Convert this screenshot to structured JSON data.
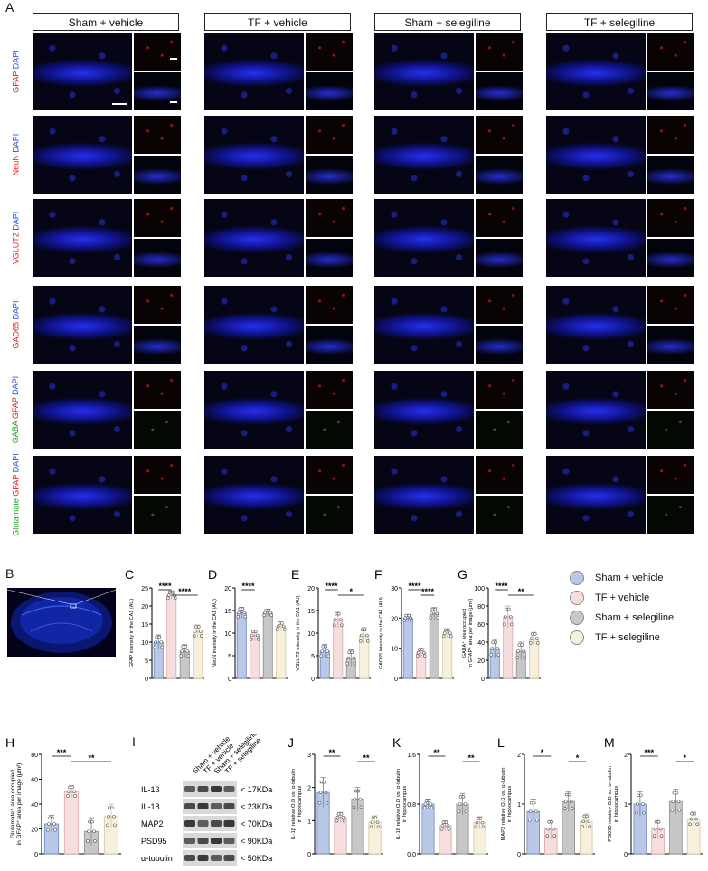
{
  "panel_labels": {
    "A": "A",
    "B": "B",
    "C": "C",
    "D": "D",
    "E": "E",
    "F": "F",
    "G": "G",
    "H": "H",
    "I": "I",
    "J": "J",
    "K": "K",
    "L": "L",
    "M": "M"
  },
  "column_headers": [
    "Sham + vehicle",
    "TF + vehicle",
    "Sham + selegiline",
    "TF + selegiline"
  ],
  "row_labels": [
    {
      "marker": "GFAP",
      "marker_color": "#e01818",
      "stain": "DAPI",
      "stain_color": "#2b4fd6"
    },
    {
      "marker": "NeuN",
      "marker_color": "#e01818",
      "stain": "DAPI",
      "stain_color": "#2b4fd6"
    },
    {
      "marker": "VGLUT2",
      "marker_color": "#e01818",
      "stain": "DAPI",
      "stain_color": "#2b4fd6"
    },
    {
      "marker": "GAD65",
      "marker_color": "#e01818",
      "stain": "DAPI",
      "stain_color": "#2b4fd6"
    },
    {
      "marker": "GABA",
      "marker_color": "#19a019",
      "marker2": "GFAP",
      "marker2_color": "#e01818",
      "stain": "DAPI",
      "stain_color": "#2b4fd6"
    },
    {
      "marker": "Glutamate",
      "marker_color": "#19a019",
      "marker2": "GFAP",
      "marker2_color": "#e01818",
      "stain": "DAPI",
      "stain_color": "#2b4fd6"
    }
  ],
  "legend": [
    {
      "name": "Sham + vehicle",
      "color": "#b8c8e6"
    },
    {
      "name": "TF + vehicle",
      "color": "#f6dede"
    },
    {
      "name": "Sham + selegiline",
      "color": "#c7c7c7"
    },
    {
      "name": "TF + selegiline",
      "color": "#f7f0dc"
    }
  ],
  "western_blot": {
    "lanes": [
      "Sham + vehicle",
      "TF + vehicle",
      "Sham + selegiline",
      "TF + selegiline"
    ],
    "bands": [
      {
        "name": "IL-1β",
        "size": "17KDa"
      },
      {
        "name": "IL-18",
        "size": "23KDa"
      },
      {
        "name": "MAP2",
        "size": "70KDa"
      },
      {
        "name": "PSD95",
        "size": "90KDa"
      },
      {
        "name": "α-tubulin",
        "size": "50KDa"
      }
    ]
  },
  "chart_data": [
    {
      "panel": "C",
      "type": "bar",
      "categories": [
        "Sham + vehicle",
        "TF + vehicle",
        "Sham + selegiline",
        "TF + selegiline"
      ],
      "values": [
        10,
        23,
        7.5,
        13
      ],
      "errors": [
        2,
        1.2,
        1.8,
        1.8
      ],
      "ylabel": "GFAP intensity in the CA1 (AU)",
      "ylim": [
        0,
        25
      ],
      "yticks": [
        0,
        5,
        10,
        15,
        20,
        25
      ],
      "sig": [
        {
          "from": 0,
          "to": 1,
          "label": "****"
        },
        {
          "from": 1,
          "to": 3,
          "label": "****"
        }
      ]
    },
    {
      "panel": "D",
      "type": "bar",
      "categories": [
        "Sham + vehicle",
        "TF + vehicle",
        "Sham + selegiline",
        "TF + selegiline"
      ],
      "values": [
        14.5,
        9.5,
        14.5,
        11.5
      ],
      "errors": [
        1.2,
        1.2,
        0.8,
        1.0
      ],
      "ylabel": "NeuN intensity in the CA1 (AU)",
      "ylim": [
        0,
        20
      ],
      "yticks": [
        0,
        5,
        10,
        15,
        20
      ],
      "sig": [
        {
          "from": 0,
          "to": 1,
          "label": "****"
        }
      ]
    },
    {
      "panel": "E",
      "type": "bar",
      "categories": [
        "Sham + vehicle",
        "TF + vehicle",
        "Sham + selegiline",
        "TF + selegiline"
      ],
      "values": [
        6,
        13,
        4.5,
        9.5
      ],
      "errors": [
        1.5,
        1.8,
        1.8,
        1.8
      ],
      "ylabel": "VGLUT2 intensity in the CA1 (AU)",
      "ylim": [
        0,
        20
      ],
      "yticks": [
        0,
        5,
        10,
        15,
        20
      ],
      "sig": [
        {
          "from": 0,
          "to": 1,
          "label": "****"
        },
        {
          "from": 1,
          "to": 3,
          "label": "*"
        }
      ]
    },
    {
      "panel": "F",
      "type": "bar",
      "categories": [
        "Sham + vehicle",
        "TF + vehicle",
        "Sham + selegiline",
        "TF + selegiline"
      ],
      "values": [
        20,
        8.5,
        21.5,
        15
      ],
      "errors": [
        1.2,
        1.5,
        2.0,
        1.5
      ],
      "ylabel": "GAD65 intensity in the CA1 (AU)",
      "ylim": [
        0,
        30
      ],
      "yticks": [
        0,
        10,
        20,
        30
      ],
      "sig": [
        {
          "from": 0,
          "to": 1,
          "label": "****"
        },
        {
          "from": 1,
          "to": 2,
          "label": "****"
        }
      ]
    },
    {
      "panel": "G",
      "type": "bar",
      "categories": [
        "Sham + vehicle",
        "TF + vehicle",
        "Sham + selegiline",
        "TF + selegiline"
      ],
      "values": [
        33,
        68,
        30,
        44
      ],
      "errors": [
        10,
        12,
        10,
        7
      ],
      "ylabel": "GABA⁺ area occupied in GFAP⁺ area per image (μm²)",
      "ylim": [
        0,
        100
      ],
      "yticks": [
        0,
        20,
        40,
        60,
        80,
        100
      ],
      "sig": [
        {
          "from": 0,
          "to": 1,
          "label": "****"
        },
        {
          "from": 1,
          "to": 3,
          "label": "**"
        }
      ]
    },
    {
      "panel": "H",
      "type": "bar",
      "categories": [
        "Sham + vehicle",
        "TF + vehicle",
        "Sham + selegiline",
        "TF + selegiline"
      ],
      "values": [
        24,
        50,
        18,
        30
      ],
      "errors": [
        7,
        5,
        11,
        10
      ],
      "ylabel": "Glutamate⁺ area occupied in GFAP⁺ area per image (μm²)",
      "ylim": [
        0,
        80
      ],
      "yticks": [
        0,
        20,
        40,
        60,
        80
      ],
      "sig": [
        {
          "from": 0,
          "to": 1,
          "label": "***"
        },
        {
          "from": 1,
          "to": 3,
          "label": "**"
        }
      ]
    },
    {
      "panel": "J",
      "type": "bar",
      "categories": [
        "Sham + vehicle",
        "TF + vehicle",
        "Sham + selegiline",
        "TF + selegiline"
      ],
      "values": [
        1.85,
        1.1,
        1.65,
        0.95
      ],
      "errors": [
        0.45,
        0.15,
        0.35,
        0.2
      ],
      "ylabel": "IL-1β relative O.D vs. α-tubulin in hippocampus",
      "ylim": [
        0,
        3
      ],
      "yticks": [
        0,
        1,
        2,
        3
      ],
      "sig": [
        {
          "from": 0,
          "to": 1,
          "label": "**"
        },
        {
          "from": 2,
          "to": 3,
          "label": "**"
        }
      ]
    },
    {
      "panel": "K",
      "type": "bar",
      "categories": [
        "Sham + vehicle",
        "TF + vehicle",
        "Sham + selegiline",
        "TF + selegiline"
      ],
      "values": [
        0.8,
        0.45,
        0.8,
        0.5
      ],
      "errors": [
        0.08,
        0.08,
        0.17,
        0.1
      ],
      "ylabel": "IL-18 relative O.D vs. α-tubulin in hippocampus",
      "ylim": [
        0,
        1.6
      ],
      "yticks": [
        0.0,
        0.8,
        1.6
      ],
      "sig": [
        {
          "from": 0,
          "to": 1,
          "label": "**"
        },
        {
          "from": 2,
          "to": 3,
          "label": "**"
        }
      ]
    },
    {
      "panel": "L",
      "type": "bar",
      "categories": [
        "Sham + vehicle",
        "TF + vehicle",
        "Sham + selegiline",
        "TF + selegiline"
      ],
      "values": [
        0.85,
        0.5,
        1.05,
        0.65
      ],
      "errors": [
        0.25,
        0.2,
        0.2,
        0.15
      ],
      "ylabel": "MAP2 relative O.D vs. α-tubulin in hippocampus",
      "ylim": [
        0,
        2
      ],
      "yticks": [
        0,
        1,
        2
      ],
      "sig": [
        {
          "from": 0,
          "to": 1,
          "label": "*"
        },
        {
          "from": 2,
          "to": 3,
          "label": "*"
        }
      ]
    },
    {
      "panel": "M",
      "type": "bar",
      "categories": [
        "Sham + vehicle",
        "TF + vehicle",
        "Sham + selegiline",
        "TF + selegiline"
      ],
      "values": [
        1.0,
        0.5,
        1.05,
        0.7
      ],
      "errors": [
        0.25,
        0.2,
        0.25,
        0.15
      ],
      "ylabel": "PSD95 relative O.D vs. α-tubulin in hippocampus",
      "ylim": [
        0,
        2
      ],
      "yticks": [
        0,
        1,
        2
      ],
      "sig": [
        {
          "from": 0,
          "to": 1,
          "label": "***"
        },
        {
          "from": 2,
          "to": 3,
          "label": "*"
        }
      ]
    }
  ]
}
